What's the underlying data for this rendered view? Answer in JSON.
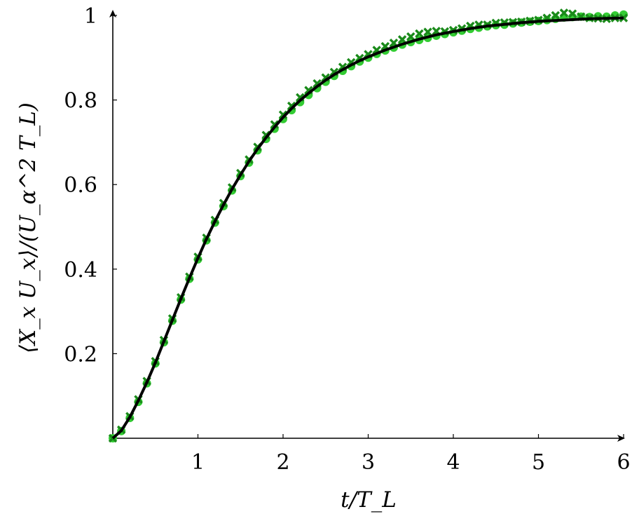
{
  "chart_data": {
    "type": "scatter",
    "title": "",
    "xlabel": "t/T_L",
    "ylabel": "⟨X_x U_x⟩/(U_α^2 T_L)",
    "xlim": [
      0,
      6
    ],
    "ylim": [
      0,
      1
    ],
    "x_ticks": [
      "1",
      "2",
      "3",
      "4",
      "5",
      "6"
    ],
    "y_ticks": [
      "0.2",
      "0.4",
      "0.6",
      "0.8",
      "1"
    ],
    "x_tick_values": [
      1,
      2,
      3,
      4,
      5,
      6
    ],
    "y_tick_values": [
      0.2,
      0.4,
      0.6,
      0.8,
      1
    ],
    "grid": false,
    "series": [
      {
        "marker": "circle",
        "color": "#33cc33",
        "x": [
          0.0,
          0.1,
          0.2,
          0.3,
          0.4,
          0.5,
          0.6,
          0.7,
          0.8,
          0.9,
          1.0,
          1.1,
          1.2,
          1.3,
          1.4,
          1.5,
          1.6,
          1.7,
          1.8,
          1.9,
          2.0,
          2.1,
          2.2,
          2.3,
          2.4,
          2.5,
          2.6,
          2.7,
          2.8,
          2.9,
          3.0,
          3.1,
          3.2,
          3.3,
          3.4,
          3.5,
          3.6,
          3.7,
          3.8,
          3.9,
          4.0,
          4.1,
          4.2,
          4.3,
          4.4,
          4.5,
          4.6,
          4.7,
          4.8,
          4.9,
          5.0,
          5.1,
          5.2,
          5.3,
          5.4,
          5.5,
          5.6,
          5.7,
          5.8,
          5.9,
          6.0
        ],
        "y": [
          0.0,
          0.017,
          0.048,
          0.086,
          0.13,
          0.177,
          0.227,
          0.278,
          0.328,
          0.377,
          0.423,
          0.468,
          0.51,
          0.549,
          0.586,
          0.62,
          0.652,
          0.681,
          0.708,
          0.732,
          0.755,
          0.776,
          0.795,
          0.812,
          0.828,
          0.843,
          0.857,
          0.869,
          0.88,
          0.891,
          0.9,
          0.909,
          0.917,
          0.924,
          0.931,
          0.937,
          0.942,
          0.947,
          0.952,
          0.956,
          0.96,
          0.964,
          0.968,
          0.971,
          0.974,
          0.977,
          0.978,
          0.981,
          0.983,
          0.985,
          0.987,
          0.989,
          0.992,
          0.995,
          0.996,
          0.997,
          0.996,
          0.998,
          0.997,
          1.0,
          1.002
        ]
      },
      {
        "marker": "cross",
        "color": "#1a8a1a",
        "x": [
          0.0,
          0.1,
          0.2,
          0.3,
          0.4,
          0.5,
          0.6,
          0.7,
          0.8,
          0.9,
          1.0,
          1.1,
          1.2,
          1.3,
          1.4,
          1.5,
          1.6,
          1.7,
          1.8,
          1.9,
          2.0,
          2.1,
          2.2,
          2.3,
          2.4,
          2.5,
          2.6,
          2.7,
          2.8,
          2.9,
          3.0,
          3.1,
          3.2,
          3.3,
          3.4,
          3.5,
          3.6,
          3.7,
          3.8,
          3.9,
          4.0,
          4.1,
          4.2,
          4.3,
          4.4,
          4.5,
          4.6,
          4.7,
          4.8,
          4.9,
          5.0,
          5.1,
          5.2,
          5.3,
          5.4,
          5.5,
          5.6,
          5.7,
          5.8,
          5.9,
          6.0
        ],
        "y": [
          0.0,
          0.02,
          0.052,
          0.092,
          0.135,
          0.182,
          0.232,
          0.283,
          0.333,
          0.382,
          0.429,
          0.474,
          0.516,
          0.556,
          0.593,
          0.627,
          0.659,
          0.689,
          0.717,
          0.742,
          0.765,
          0.786,
          0.806,
          0.823,
          0.839,
          0.853,
          0.866,
          0.878,
          0.889,
          0.899,
          0.908,
          0.918,
          0.927,
          0.935,
          0.943,
          0.95,
          0.957,
          0.961,
          0.963,
          0.962,
          0.965,
          0.969,
          0.975,
          0.978,
          0.978,
          0.982,
          0.983,
          0.984,
          0.985,
          0.987,
          0.989,
          0.994,
          1.0,
          1.006,
          1.004,
          0.997,
          0.994,
          0.993,
          0.992,
          0.994,
          0.994
        ]
      },
      {
        "marker": "line",
        "color": "#000000",
        "x": [
          0.0,
          0.1,
          0.2,
          0.3,
          0.4,
          0.5,
          0.6,
          0.7,
          0.8,
          0.9,
          1.0,
          1.1,
          1.2,
          1.3,
          1.4,
          1.5,
          1.6,
          1.7,
          1.8,
          1.9,
          2.0,
          2.1,
          2.2,
          2.3,
          2.4,
          2.5,
          2.6,
          2.7,
          2.8,
          2.9,
          3.0,
          3.2,
          3.4,
          3.6,
          3.8,
          4.0,
          4.2,
          4.4,
          4.6,
          4.8,
          5.0,
          5.2,
          5.4,
          5.6,
          5.8,
          6.0
        ],
        "y": [
          0.0,
          0.018,
          0.05,
          0.089,
          0.132,
          0.179,
          0.229,
          0.28,
          0.33,
          0.379,
          0.426,
          0.471,
          0.513,
          0.552,
          0.589,
          0.623,
          0.655,
          0.684,
          0.711,
          0.736,
          0.759,
          0.78,
          0.799,
          0.816,
          0.832,
          0.847,
          0.86,
          0.872,
          0.883,
          0.893,
          0.902,
          0.918,
          0.932,
          0.944,
          0.954,
          0.962,
          0.969,
          0.975,
          0.979,
          0.983,
          0.986,
          0.988,
          0.99,
          0.992,
          0.993,
          0.994
        ]
      }
    ]
  }
}
